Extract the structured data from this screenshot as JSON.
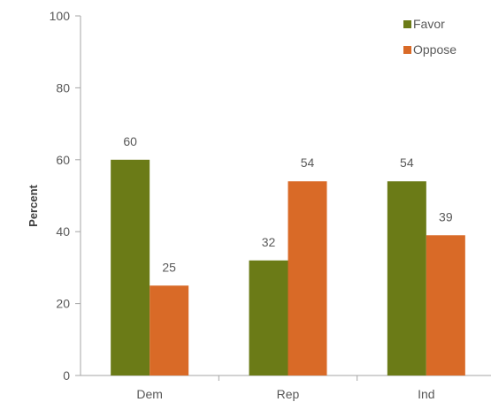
{
  "chart_data": {
    "type": "bar",
    "categories": [
      "Dem",
      "Rep",
      "Ind"
    ],
    "series": [
      {
        "name": "Favor",
        "values": [
          60,
          32,
          54
        ],
        "color": "#6b7b17"
      },
      {
        "name": "Oppose",
        "values": [
          25,
          54,
          39
        ],
        "color": "#d96a27"
      }
    ],
    "title": "",
    "xlabel": "",
    "ylabel": "Percent",
    "ylim": [
      0,
      100
    ],
    "yticks": [
      "0",
      "20",
      "40",
      "60",
      "80",
      "100"
    ],
    "grid": false,
    "legend_position": "top-right",
    "data_labels": true
  }
}
